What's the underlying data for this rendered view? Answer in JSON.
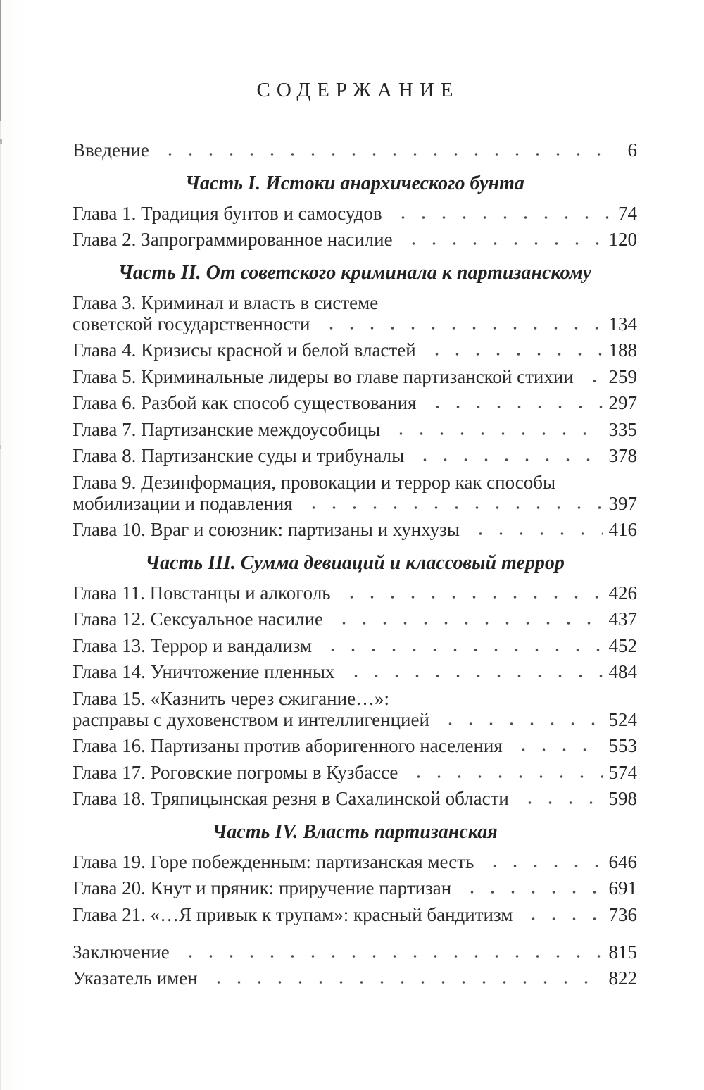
{
  "page": {
    "title": "СОДЕРЖАНИЕ",
    "text_color": "#2b2b2b",
    "background_color": "#ffffff"
  },
  "toc": {
    "intro": {
      "label": "Введение",
      "page": "6"
    },
    "parts": [
      {
        "heading": "Часть I. Истоки анархического бунта",
        "entries": [
          {
            "label": "Глава 1. Традиция бунтов и самосудов",
            "page": "74"
          },
          {
            "label": "Глава 2. Запрограммированное насилие",
            "page": "120"
          }
        ]
      },
      {
        "heading": "Часть II. От советского криминала к партизанскому",
        "entries": [
          {
            "label": "Глава 3. Криминал и власть в системе",
            "label2": "советской государственности",
            "page": "134"
          },
          {
            "label": "Глава 4. Кризисы красной и белой властей",
            "page": "188"
          },
          {
            "label": "Глава 5. Криминальные лидеры во главе партизанской стихии",
            "page": "259"
          },
          {
            "label": "Глава 6. Разбой как способ существования",
            "page": "297"
          },
          {
            "label": "Глава 7. Партизанские междоусобицы",
            "page": "335"
          },
          {
            "label": "Глава 8. Партизанские суды и трибуналы",
            "page": "378"
          },
          {
            "label": "Глава 9. Дезинформация, провокации и террор как способы",
            "label2": "мобилизации и подавления",
            "page": "397"
          },
          {
            "label": "Глава 10. Враг и союзник: партизаны и хунхузы",
            "page": "416"
          }
        ]
      },
      {
        "heading": "Часть III. Сумма девиаций и классовый террор",
        "entries": [
          {
            "label": "Глава 11. Повстанцы и алкоголь",
            "page": "426"
          },
          {
            "label": "Глава 12. Сексуальное насилие",
            "page": "437"
          },
          {
            "label": "Глава 13. Террор и вандализм",
            "page": "452"
          },
          {
            "label": "Глава 14. Уничтожение пленных",
            "page": "484"
          },
          {
            "label": "Глава 15. «Казнить через сжигание…»:",
            "label2": "расправы с духовенством и интеллигенцией",
            "page": "524"
          },
          {
            "label": "Глава 16. Партизаны против аборигенного населения",
            "page": "553"
          },
          {
            "label": "Глава 17. Роговские погромы в Кузбассе",
            "page": "574"
          },
          {
            "label": "Глава 18. Тряпицынская резня в Сахалинской области",
            "page": "598"
          }
        ]
      },
      {
        "heading": "Часть IV. Власть партизанская",
        "entries": [
          {
            "label": "Глава 19. Горе побежденным: партизанская месть",
            "page": "646"
          },
          {
            "label": "Глава 20. Кнут и пряник: приручение партизан",
            "page": "691"
          },
          {
            "label": "Глава 21. «…Я привык к трупам»: красный бандитизм",
            "page": "736"
          }
        ]
      }
    ],
    "back": [
      {
        "label": "Заключение",
        "page": "815"
      },
      {
        "label": "Указатель имен",
        "page": "822"
      }
    ]
  }
}
